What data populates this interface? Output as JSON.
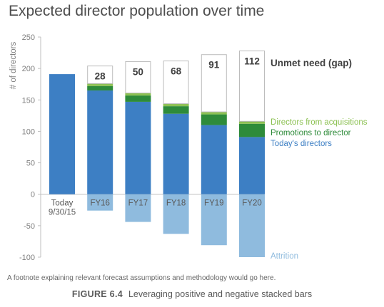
{
  "chart_data": {
    "type": "bar",
    "title": "Expected director population over time",
    "ylabel": "# of directors",
    "ylim": [
      -100,
      250
    ],
    "yticks": [
      -100,
      -50,
      0,
      50,
      100,
      150,
      200,
      250
    ],
    "categories": [
      {
        "lines": [
          "Today",
          "9/30/15"
        ]
      },
      {
        "lines": [
          "FY16"
        ]
      },
      {
        "lines": [
          "FY17"
        ]
      },
      {
        "lines": [
          "FY18"
        ]
      },
      {
        "lines": [
          "FY19"
        ]
      },
      {
        "lines": [
          "FY20"
        ]
      }
    ],
    "series": [
      {
        "name": "Today's directors",
        "color": "#3d7fc4",
        "values": [
          191,
          165,
          147,
          128,
          110,
          91
        ]
      },
      {
        "name": "Promotions to director",
        "color": "#2e8b3a",
        "values": [
          0,
          7,
          10,
          12,
          17,
          21
        ]
      },
      {
        "name": "Directors from acquisitions",
        "color": "#8cc152",
        "values": [
          0,
          4,
          4,
          4,
          4,
          4
        ]
      },
      {
        "name": "Unmet need (gap)",
        "color": "#ffffff",
        "values": [
          0,
          28,
          50,
          68,
          91,
          112
        ]
      },
      {
        "name": "Attrition",
        "color": "#8fbbde",
        "values": [
          0,
          -26,
          -44,
          -63,
          -81,
          -100
        ]
      }
    ],
    "gap_labels": [
      "",
      "28",
      "50",
      "68",
      "91",
      "112"
    ],
    "legend_labels": {
      "gap": "Unmet need (gap)",
      "acquisitions": "Directors from acquisitions",
      "promotions": "Promotions to director",
      "today": "Today's directors",
      "attrition": "Attrition"
    }
  },
  "footnote": "A footnote explaining relevant forecast assumptions and methodology would go here.",
  "caption": {
    "figure": "FIGURE 6.4",
    "text": "Leveraging positive and negative stacked bars"
  }
}
